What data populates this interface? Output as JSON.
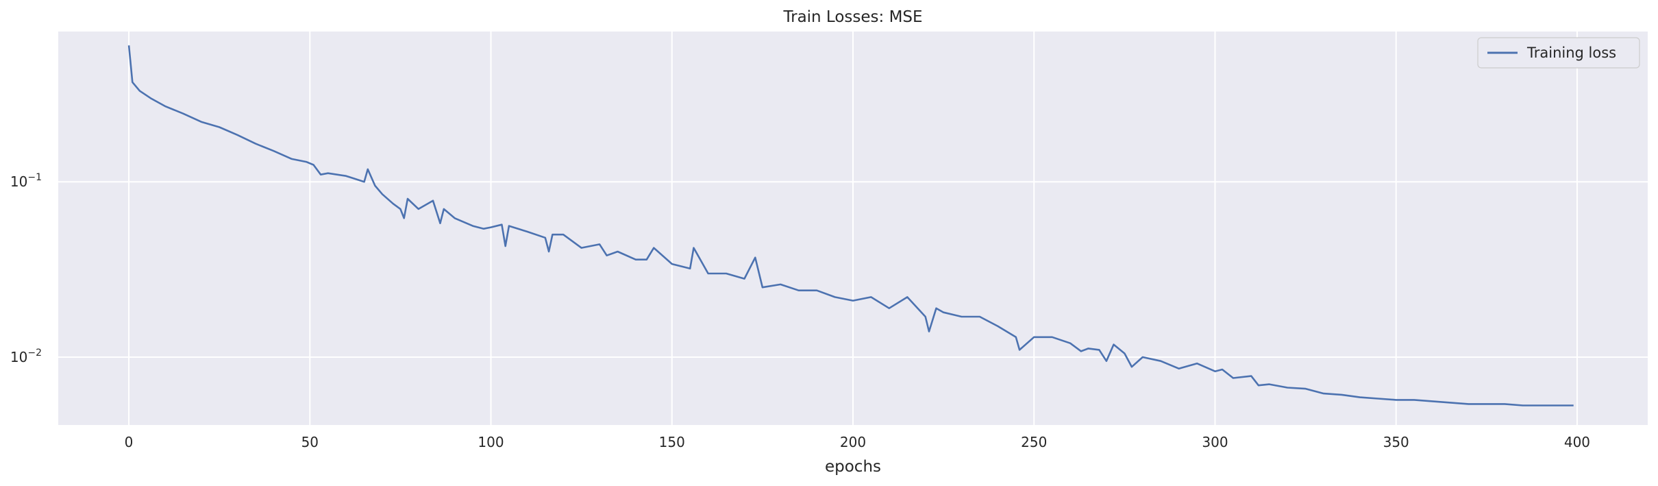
{
  "chart_data": {
    "type": "line",
    "title": "Train Losses:  MSE",
    "xlabel": "epochs",
    "ylabel": "",
    "yscale": "log",
    "xlim": [
      -19.5,
      419.5
    ],
    "ylim": [
      0.0041,
      0.72
    ],
    "xticks": [
      0,
      50,
      100,
      150,
      200,
      250,
      300,
      350,
      400
    ],
    "yticks": [
      {
        "value": 0.1,
        "base": "10",
        "exp": "−1"
      },
      {
        "value": 0.01,
        "base": "10",
        "exp": "−2"
      }
    ],
    "grid": true,
    "legend_position": "top-right",
    "background_color": "#eaeaf2",
    "grid_color": "#ffffff",
    "series": [
      {
        "name": "Training loss",
        "color": "#4c72b0",
        "points": [
          [
            0,
            0.6
          ],
          [
            1,
            0.37
          ],
          [
            3,
            0.33
          ],
          [
            6,
            0.3
          ],
          [
            10,
            0.27
          ],
          [
            15,
            0.245
          ],
          [
            20,
            0.22
          ],
          [
            25,
            0.205
          ],
          [
            30,
            0.185
          ],
          [
            35,
            0.165
          ],
          [
            40,
            0.15
          ],
          [
            45,
            0.135
          ],
          [
            49,
            0.13
          ],
          [
            51,
            0.125
          ],
          [
            53,
            0.11
          ],
          [
            55,
            0.112
          ],
          [
            60,
            0.108
          ],
          [
            65,
            0.1
          ],
          [
            66,
            0.118
          ],
          [
            68,
            0.095
          ],
          [
            70,
            0.085
          ],
          [
            73,
            0.075
          ],
          [
            75,
            0.07
          ],
          [
            76,
            0.062
          ],
          [
            77,
            0.08
          ],
          [
            80,
            0.07
          ],
          [
            84,
            0.078
          ],
          [
            86,
            0.058
          ],
          [
            87,
            0.07
          ],
          [
            90,
            0.062
          ],
          [
            95,
            0.056
          ],
          [
            98,
            0.054
          ],
          [
            100,
            0.055
          ],
          [
            103,
            0.057
          ],
          [
            104,
            0.043
          ],
          [
            105,
            0.056
          ],
          [
            110,
            0.052
          ],
          [
            115,
            0.048
          ],
          [
            116,
            0.04
          ],
          [
            117,
            0.05
          ],
          [
            120,
            0.05
          ],
          [
            125,
            0.042
          ],
          [
            130,
            0.044
          ],
          [
            132,
            0.038
          ],
          [
            135,
            0.04
          ],
          [
            140,
            0.036
          ],
          [
            143,
            0.036
          ],
          [
            145,
            0.042
          ],
          [
            150,
            0.034
          ],
          [
            155,
            0.032
          ],
          [
            156,
            0.042
          ],
          [
            160,
            0.03
          ],
          [
            165,
            0.03
          ],
          [
            170,
            0.028
          ],
          [
            173,
            0.037
          ],
          [
            175,
            0.025
          ],
          [
            180,
            0.026
          ],
          [
            185,
            0.024
          ],
          [
            190,
            0.024
          ],
          [
            195,
            0.022
          ],
          [
            200,
            0.021
          ],
          [
            205,
            0.022
          ],
          [
            210,
            0.019
          ],
          [
            215,
            0.022
          ],
          [
            220,
            0.017
          ],
          [
            221,
            0.014
          ],
          [
            223,
            0.019
          ],
          [
            225,
            0.018
          ],
          [
            230,
            0.017
          ],
          [
            235,
            0.017
          ],
          [
            240,
            0.015
          ],
          [
            245,
            0.013
          ],
          [
            246,
            0.011
          ],
          [
            250,
            0.013
          ],
          [
            255,
            0.013
          ],
          [
            260,
            0.012
          ],
          [
            263,
            0.0108
          ],
          [
            265,
            0.0112
          ],
          [
            268,
            0.011
          ],
          [
            270,
            0.0095
          ],
          [
            272,
            0.0118
          ],
          [
            275,
            0.0105
          ],
          [
            277,
            0.0088
          ],
          [
            280,
            0.01
          ],
          [
            285,
            0.0095
          ],
          [
            290,
            0.0086
          ],
          [
            295,
            0.0092
          ],
          [
            300,
            0.0083
          ],
          [
            302,
            0.0085
          ],
          [
            305,
            0.0076
          ],
          [
            310,
            0.0078
          ],
          [
            312,
            0.0069
          ],
          [
            315,
            0.007
          ],
          [
            320,
            0.0067
          ],
          [
            325,
            0.0066
          ],
          [
            330,
            0.0062
          ],
          [
            335,
            0.0061
          ],
          [
            340,
            0.0059
          ],
          [
            345,
            0.0058
          ],
          [
            350,
            0.0057
          ],
          [
            355,
            0.0057
          ],
          [
            360,
            0.0056
          ],
          [
            365,
            0.0055
          ],
          [
            370,
            0.0054
          ],
          [
            375,
            0.0054
          ],
          [
            380,
            0.0054
          ],
          [
            385,
            0.0053
          ],
          [
            390,
            0.0053
          ],
          [
            395,
            0.0053
          ],
          [
            399,
            0.0053
          ]
        ]
      }
    ]
  }
}
